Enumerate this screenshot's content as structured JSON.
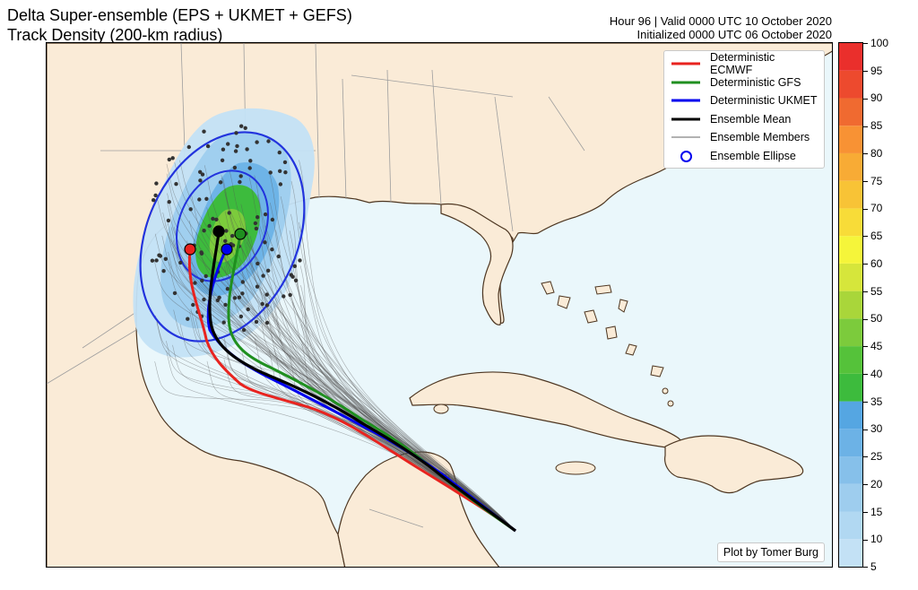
{
  "title_line1": "Delta Super-ensemble (EPS + UKMET + GEFS)",
  "title_line2": "Track Density (200-km radius)",
  "meta_line1": "Hour 96 | Valid 0000 UTC 10 October 2020",
  "meta_line2": "Initialized 0000 UTC 06 October 2020",
  "credit": "Plot by Tomer Burg",
  "legend": [
    {
      "label": "Deterministic ECMWF",
      "kind": "line",
      "color": "#e8231f",
      "width": 3
    },
    {
      "label": "Deterministic GFS",
      "kind": "line",
      "color": "#1f8f1f",
      "width": 3
    },
    {
      "label": "Deterministic UKMET",
      "kind": "line",
      "color": "#0000ee",
      "width": 3
    },
    {
      "label": "Ensemble Mean",
      "kind": "line",
      "color": "#000000",
      "width": 3
    },
    {
      "label": "Ensemble Members",
      "kind": "line",
      "color": "#666666",
      "width": 1
    },
    {
      "label": "Ensemble Ellipse",
      "kind": "ring",
      "color": "#0000ee",
      "width": 2
    }
  ],
  "colorbar": {
    "ticks": [
      100,
      95,
      90,
      85,
      80,
      75,
      70,
      65,
      60,
      55,
      50,
      45,
      40,
      35,
      30,
      25,
      20,
      15,
      10,
      5
    ],
    "bins": [
      {
        "from": 5,
        "to": 10,
        "color": "#c3e1f5"
      },
      {
        "from": 10,
        "to": 15,
        "color": "#b1d8f2"
      },
      {
        "from": 15,
        "to": 20,
        "color": "#9ecdee"
      },
      {
        "from": 20,
        "to": 25,
        "color": "#86c0ea"
      },
      {
        "from": 25,
        "to": 30,
        "color": "#6cb2e6"
      },
      {
        "from": 30,
        "to": 35,
        "color": "#55a6e2"
      },
      {
        "from": 35,
        "to": 40,
        "color": "#3dbb3d"
      },
      {
        "from": 40,
        "to": 45,
        "color": "#55c23a"
      },
      {
        "from": 45,
        "to": 50,
        "color": "#7ccb3c"
      },
      {
        "from": 50,
        "to": 55,
        "color": "#a9d63a"
      },
      {
        "from": 55,
        "to": 60,
        "color": "#d6e63b"
      },
      {
        "from": 60,
        "to": 65,
        "color": "#f5f53a"
      },
      {
        "from": 65,
        "to": 70,
        "color": "#f8dc38"
      },
      {
        "from": 70,
        "to": 75,
        "color": "#f8c336"
      },
      {
        "from": 75,
        "to": 80,
        "color": "#f8ab35"
      },
      {
        "from": 80,
        "to": 85,
        "color": "#f89234"
      },
      {
        "from": 85,
        "to": 90,
        "color": "#f06a30"
      },
      {
        "from": 90,
        "to": 95,
        "color": "#ed4a2e"
      },
      {
        "from": 95,
        "to": 100,
        "color": "#ea2f2c"
      }
    ]
  },
  "colors": {
    "ocean": "#eaf7fb",
    "land": "#faebd7",
    "coast": "#4d3621",
    "border": "#9e9e9e",
    "ellipse": "#2233dd"
  }
}
